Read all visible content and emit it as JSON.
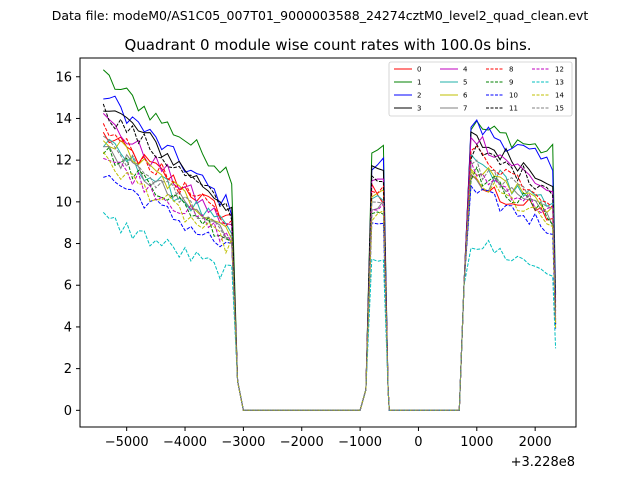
{
  "chart_data": {
    "type": "line",
    "suptitle": "Data file: modeM0/AS1C05_007T01_9000003588_24274cztM0_level2_quad_clean.evt",
    "title": "Quadrant 0 module wise count rates with 100.0s bins.",
    "xlabel": "",
    "ylabel": "",
    "x_offset_label": "+3.228e8",
    "xlim": [
      -5800,
      2700
    ],
    "ylim": [
      -0.8,
      16.9
    ],
    "xticks": [
      -5000,
      -4000,
      -3000,
      -2000,
      -1000,
      0,
      1000,
      2000
    ],
    "xtick_labels": [
      "−5000",
      "−4000",
      "−3000",
      "−2000",
      "−1000",
      "0",
      "1000",
      "2000"
    ],
    "yticks": [
      0,
      2,
      4,
      6,
      8,
      10,
      12,
      14,
      16
    ],
    "ytick_labels": [
      "0",
      "2",
      "4",
      "6",
      "8",
      "10",
      "12",
      "14",
      "16"
    ],
    "segments": [
      {
        "x_start": -5400,
        "x_end": -3200
      },
      {
        "x_start": -900,
        "x_end": -500
      },
      {
        "x_start": 800,
        "x_end": 2350
      }
    ],
    "zero_range": [
      -3000,
      -1000
    ],
    "legend_position": "upper right",
    "series": [
      {
        "name": "0",
        "color": "#ff0000",
        "style": "solid",
        "base": [
          13.2,
          11.4,
          11.0
        ],
        "end": [
          9.2,
          9.5,
          9.2
        ]
      },
      {
        "name": "1",
        "color": "#008000",
        "style": "solid",
        "base": [
          16.0,
          12.3,
          13.8
        ],
        "end": [
          11.3,
          12.9,
          12.3
        ]
      },
      {
        "name": "2",
        "color": "#0000ff",
        "style": "solid",
        "base": [
          15.2,
          11.5,
          13.9
        ],
        "end": [
          9.7,
          12.1,
          11.6
        ]
      },
      {
        "name": "3",
        "color": "#000000",
        "style": "solid",
        "base": [
          14.8,
          11.5,
          13.2
        ],
        "end": [
          9.7,
          11.5,
          11.0
        ]
      },
      {
        "name": "4",
        "color": "#bf00bf",
        "style": "solid",
        "base": [
          14.0,
          11.0,
          13.5
        ],
        "end": [
          8.7,
          11.0,
          10.3
        ]
      },
      {
        "name": "5",
        "color": "#20b2aa",
        "style": "solid",
        "base": [
          12.8,
          10.0,
          12.2
        ],
        "end": [
          8.5,
          10.2,
          9.5
        ]
      },
      {
        "name": "6",
        "color": "#bfbf00",
        "style": "solid",
        "base": [
          13.2,
          10.3,
          12.0
        ],
        "end": [
          8.6,
          10.4,
          9.6
        ]
      },
      {
        "name": "7",
        "color": "#808080",
        "style": "solid",
        "base": [
          12.6,
          9.8,
          11.5
        ],
        "end": [
          8.3,
          9.9,
          9.1
        ]
      },
      {
        "name": "8",
        "color": "#ff0000",
        "style": "dashed",
        "base": [
          13.5,
          10.8,
          12.7
        ],
        "end": [
          8.9,
          10.5,
          10.0
        ]
      },
      {
        "name": "9",
        "color": "#008000",
        "style": "dashed",
        "base": [
          12.5,
          9.4,
          11.6
        ],
        "end": [
          8.2,
          9.7,
          9.2
        ]
      },
      {
        "name": "10",
        "color": "#0000ff",
        "style": "dashed",
        "base": [
          11.3,
          9.0,
          10.6
        ],
        "end": [
          7.6,
          9.0,
          8.7
        ]
      },
      {
        "name": "11",
        "color": "#000000",
        "style": "dashed",
        "base": [
          14.4,
          11.3,
          12.6
        ],
        "end": [
          9.5,
          10.9,
          10.6
        ]
      },
      {
        "name": "12",
        "color": "#bf00bf",
        "style": "dashed",
        "base": [
          12.2,
          9.6,
          11.7
        ],
        "end": [
          8.1,
          9.8,
          9.4
        ]
      },
      {
        "name": "13",
        "color": "#00bfbf",
        "style": "dashed",
        "base": [
          9.2,
          7.0,
          8.2
        ],
        "end": [
          6.5,
          7.5,
          6.6
        ]
      },
      {
        "name": "14",
        "color": "#bfbf00",
        "style": "dashed",
        "base": [
          12.0,
          9.2,
          11.3
        ],
        "end": [
          7.8,
          9.5,
          8.8
        ]
      },
      {
        "name": "15",
        "color": "#808080",
        "style": "dashed",
        "base": [
          12.8,
          10.0,
          11.9
        ],
        "end": [
          8.4,
          10.1,
          9.7
        ]
      }
    ]
  }
}
